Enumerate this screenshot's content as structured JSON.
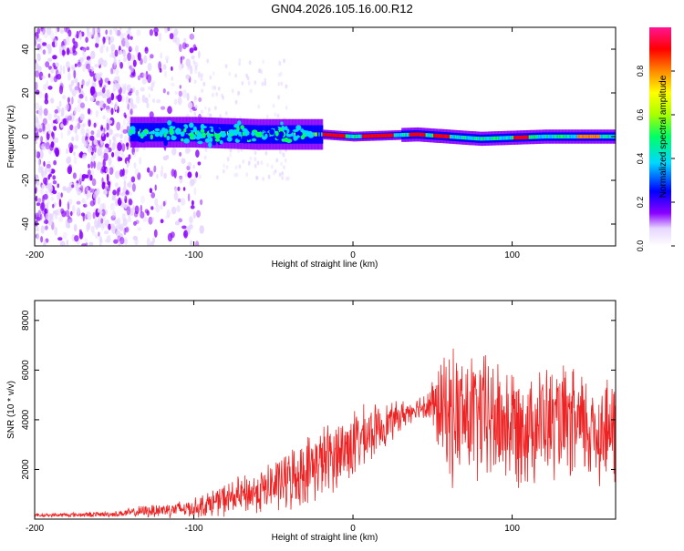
{
  "title": "GN04.2026.105.16.00.R12",
  "chart_data": [
    {
      "type": "heatmap",
      "title": "GN04.2026.105.16.00.R12",
      "xlabel": "Height of straight line (km)",
      "ylabel": "Frequency (Hz)",
      "xlim": [
        -200,
        165
      ],
      "ylim": [
        -50,
        50
      ],
      "xticks": [
        -200,
        -100,
        0,
        100
      ],
      "yticks": [
        -40,
        -20,
        0,
        20,
        40
      ],
      "colorbar": {
        "label": "Normalized spectral amplitude",
        "range": [
          0,
          1
        ],
        "ticks": [
          "0.0",
          "0.2",
          "0.4",
          "0.6",
          "0.8"
        ],
        "colormap": [
          "#ffffff",
          "#e6d6ff",
          "#8a00ff",
          "#0000ff",
          "#00d8ff",
          "#00ff66",
          "#a8ff00",
          "#ffff00",
          "#ff8800",
          "#ff0000",
          "#ff1493"
        ]
      },
      "band_center_hz": [
        {
          "x": -140,
          "y": 2
        },
        {
          "x": -100,
          "y": 2
        },
        {
          "x": -60,
          "y": 1
        },
        {
          "x": -20,
          "y": 1
        },
        {
          "x": 0,
          "y": 0
        },
        {
          "x": 40,
          "y": 1
        },
        {
          "x": 80,
          "y": -1
        },
        {
          "x": 120,
          "y": 0
        },
        {
          "x": 165,
          "y": 0
        }
      ],
      "peak_amplitude_segments": [
        {
          "x": [
            -25,
            -5
          ],
          "amplitude": 0.95
        },
        {
          "x": [
            5,
            25
          ],
          "amplitude": 0.95
        },
        {
          "x": [
            35,
            45
          ],
          "amplitude": 0.9
        },
        {
          "x": [
            50,
            60
          ],
          "amplitude": 0.9
        },
        {
          "x": [
            100,
            110
          ],
          "amplitude": 0.9
        },
        {
          "x": [
            140,
            155
          ],
          "amplitude": 0.85
        }
      ]
    },
    {
      "type": "line",
      "xlabel": "Height of straight line (km)",
      "ylabel": "SNR (10 * v/v)",
      "xlim": [
        -200,
        165
      ],
      "ylim": [
        0,
        8800
      ],
      "xticks": [
        -200,
        -100,
        0,
        100
      ],
      "yticks": [
        2000,
        4000,
        6000,
        8000
      ],
      "color": "#ee2222",
      "x": [
        -200,
        -150,
        -125,
        -100,
        -80,
        -60,
        -40,
        -20,
        0,
        20,
        40,
        48,
        60,
        80,
        100,
        120,
        140,
        165
      ],
      "mean": [
        150,
        200,
        350,
        450,
        800,
        1100,
        1600,
        2300,
        3000,
        3800,
        4500,
        4600,
        4200,
        4100,
        3800,
        3900,
        3700,
        3500
      ],
      "spread": [
        80,
        120,
        300,
        400,
        700,
        900,
        1300,
        1500,
        1500,
        900,
        400,
        900,
        2800,
        2800,
        2600,
        2400,
        2400,
        2300
      ]
    }
  ]
}
